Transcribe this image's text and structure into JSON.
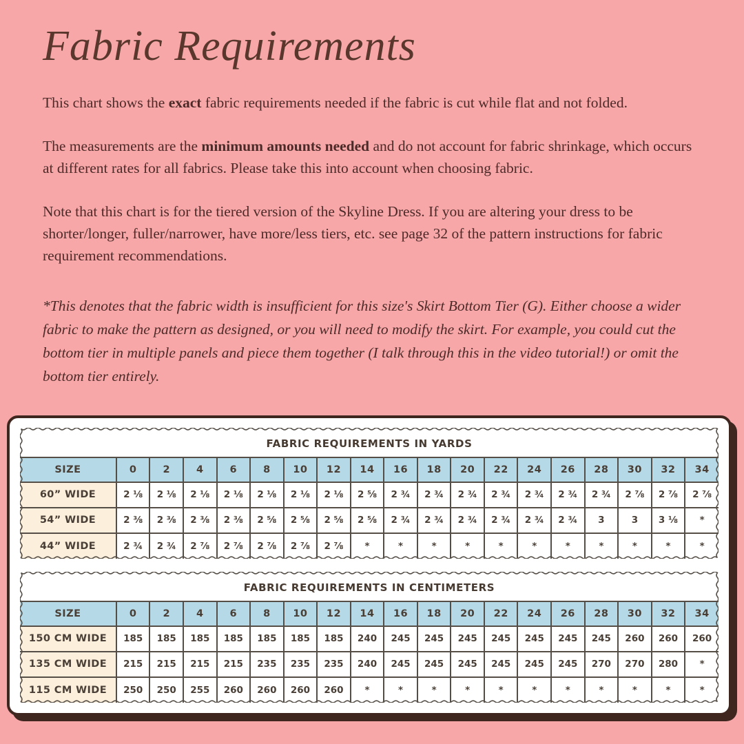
{
  "page": {
    "title": "Fabric Requirements",
    "p1_pre": "This chart shows the ",
    "p1_bold": "exact",
    "p1_post": " fabric requirements needed if the fabric is cut while flat and not folded.",
    "p2_pre": "The measurements are the ",
    "p2_bold": "minimum amounts needed",
    "p2_post": " and do not account for fabric shrinkage, which occurs at different rates for all fabrics. Please take this into account when choosing fabric.",
    "p3": "Note that this chart is for the tiered version of the Skyline Dress. If you are altering your dress to be shorter/longer, fuller/narrower, have more/less tiers, etc. see page 32 of the pattern instructions for fabric requirement recommendations.",
    "note": "*This denotes that the fabric width is insufficient for this size's Skirt Bottom Tier (G). Either choose a wider fabric to make the pattern as designed, or you will need to modify the skirt. For example, you could cut the bottom tier in multiple panels and piece them together (I talk through this in the video tutorial!) or omit the bottom tier entirely."
  },
  "colors": {
    "background": "#f8a7a8",
    "title_brown": "#5a372c",
    "body_brown": "#4c2a28",
    "card_border": "#3f261f",
    "header_blue": "#b5d9e6",
    "label_cream": "#fcefdb",
    "line_gray": "#544e47",
    "table_text": "#493f36"
  },
  "tables": [
    {
      "title": "FABRIC REQUIREMENTS IN YARDS",
      "size_label": "SIZE",
      "sizes": [
        "0",
        "2",
        "4",
        "6",
        "8",
        "10",
        "12",
        "14",
        "16",
        "18",
        "20",
        "22",
        "24",
        "26",
        "28",
        "30",
        "32",
        "34"
      ],
      "rows": [
        {
          "label": "60” WIDE",
          "values": [
            "2 ⅛",
            "2 ⅛",
            "2 ⅛",
            "2 ⅛",
            "2 ⅛",
            "2 ⅛",
            "2 ⅛",
            "2 ⅝",
            "2 ¾",
            "2 ¾",
            "2 ¾",
            "2 ¾",
            "2 ¾",
            "2 ¾",
            "2 ¾",
            "2 ⅞",
            "2 ⅞",
            "2 ⅞"
          ]
        },
        {
          "label": "54” WIDE",
          "values": [
            "2 ⅜",
            "2 ⅜",
            "2 ⅜",
            "2 ⅜",
            "2 ⅝",
            "2 ⅝",
            "2 ⅝",
            "2 ⅝",
            "2 ¾",
            "2 ¾",
            "2 ¾",
            "2 ¾",
            "2 ¾",
            "2 ¾",
            "3",
            "3",
            "3 ⅛",
            "*"
          ]
        },
        {
          "label": "44” WIDE",
          "values": [
            "2 ¾",
            "2 ¾",
            "2 ⅞",
            "2 ⅞",
            "2 ⅞",
            "2 ⅞",
            "2 ⅞",
            "*",
            "*",
            "*",
            "*",
            "*",
            "*",
            "*",
            "*",
            "*",
            "*",
            "*"
          ]
        }
      ]
    },
    {
      "title": "FABRIC REQUIREMENTS IN CENTIMETERS",
      "size_label": "SIZE",
      "sizes": [
        "0",
        "2",
        "4",
        "6",
        "8",
        "10",
        "12",
        "14",
        "16",
        "18",
        "20",
        "22",
        "24",
        "26",
        "28",
        "30",
        "32",
        "34"
      ],
      "rows": [
        {
          "label": "150 CM WIDE",
          "values": [
            "185",
            "185",
            "185",
            "185",
            "185",
            "185",
            "185",
            "240",
            "245",
            "245",
            "245",
            "245",
            "245",
            "245",
            "245",
            "260",
            "260",
            "260"
          ]
        },
        {
          "label": "135 CM WIDE",
          "values": [
            "215",
            "215",
            "215",
            "215",
            "235",
            "235",
            "235",
            "240",
            "245",
            "245",
            "245",
            "245",
            "245",
            "245",
            "270",
            "270",
            "280",
            "*"
          ]
        },
        {
          "label": "115 CM WIDE",
          "values": [
            "250",
            "250",
            "255",
            "260",
            "260",
            "260",
            "260",
            "*",
            "*",
            "*",
            "*",
            "*",
            "*",
            "*",
            "*",
            "*",
            "*",
            "*"
          ]
        }
      ]
    }
  ]
}
